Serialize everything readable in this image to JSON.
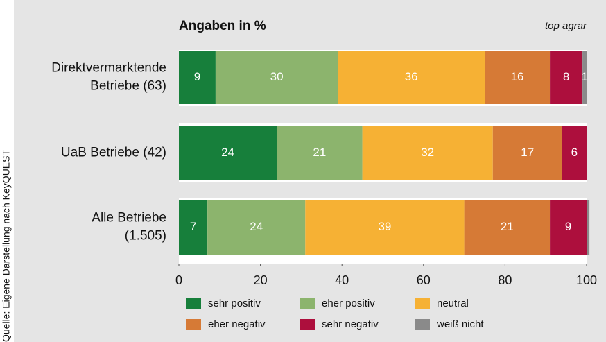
{
  "chart_data": {
    "type": "stacked-bar-horizontal",
    "title": "Angaben in %",
    "brand": "top agrar",
    "source": "Quelle: Eigene Darstellung nach KeyQUEST",
    "categories": [
      [
        "Direktvermarktende",
        "Betriebe (63)"
      ],
      [
        "UaB Betriebe (42)"
      ],
      [
        "Alle Betriebe",
        "(1.505)"
      ]
    ],
    "series": [
      {
        "name": "sehr positiv",
        "color": "#177f3b",
        "values": [
          9,
          24,
          7
        ]
      },
      {
        "name": "eher positiv",
        "color": "#8cb46d",
        "values": [
          30,
          21,
          24
        ]
      },
      {
        "name": "neutral",
        "color": "#f6b134",
        "values": [
          36,
          32,
          39
        ]
      },
      {
        "name": "eher negativ",
        "color": "#d67a36",
        "values": [
          16,
          17,
          21
        ]
      },
      {
        "name": "sehr negativ",
        "color": "#ad0f3d",
        "values": [
          8,
          6,
          9
        ]
      },
      {
        "name": "weiß nicht",
        "color": "#8a8a8a",
        "values": [
          1,
          null,
          0.7
        ],
        "value_labels": [
          "1",
          null,
          null
        ]
      }
    ],
    "xlim": [
      0,
      100
    ],
    "xticks": [
      0,
      20,
      40,
      60,
      80,
      100
    ]
  }
}
